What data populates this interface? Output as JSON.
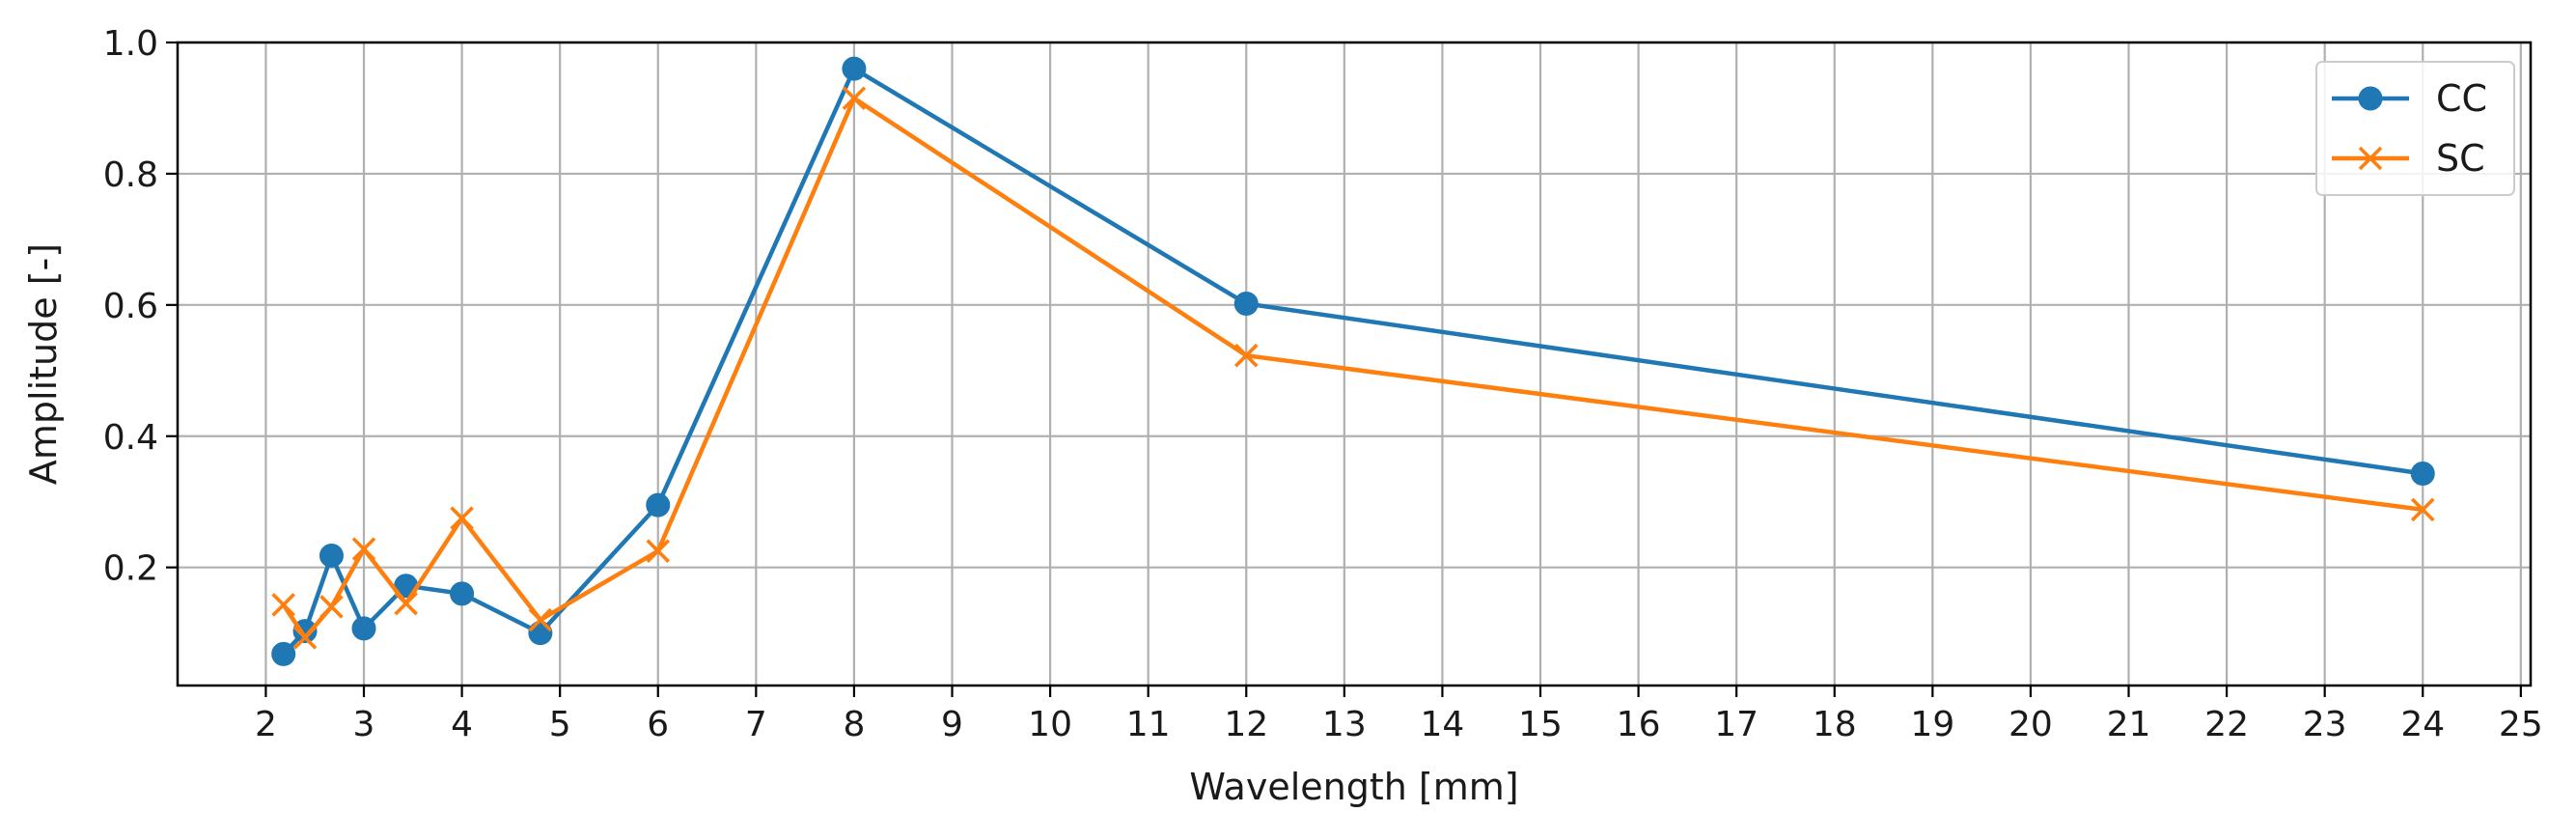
{
  "chart_data": {
    "type": "line",
    "title": "",
    "xlabel": "Wavelength [mm]",
    "ylabel": "Amplitude [-]",
    "xlim": [
      1.1,
      25.1
    ],
    "ylim": [
      0.02,
      1.0
    ],
    "xticks": [
      2,
      3,
      4,
      5,
      6,
      7,
      8,
      9,
      10,
      11,
      12,
      13,
      14,
      15,
      16,
      17,
      18,
      19,
      20,
      21,
      22,
      23,
      24,
      25
    ],
    "yticks": [
      0.2,
      0.4,
      0.6,
      0.8,
      1.0
    ],
    "ytick_labels": [
      "0.2",
      "0.4",
      "0.6",
      "0.8",
      "1.0"
    ],
    "grid": true,
    "legend_position": "top-right",
    "series": [
      {
        "name": "CC",
        "color": "#1f77b4",
        "marker": "circle",
        "x": [
          2.18,
          2.4,
          2.67,
          3.0,
          3.43,
          4.0,
          4.8,
          6.0,
          8.0,
          12.0,
          24.0
        ],
        "y": [
          0.068,
          0.103,
          0.218,
          0.107,
          0.172,
          0.16,
          0.1,
          0.295,
          0.96,
          0.602,
          0.343
        ]
      },
      {
        "name": "SC",
        "color": "#ff7f0e",
        "marker": "x",
        "x": [
          2.18,
          2.4,
          2.67,
          3.0,
          3.43,
          4.0,
          4.8,
          6.0,
          8.0,
          12.0,
          24.0
        ],
        "y": [
          0.143,
          0.093,
          0.14,
          0.228,
          0.145,
          0.275,
          0.12,
          0.225,
          0.915,
          0.523,
          0.288
        ]
      }
    ]
  }
}
